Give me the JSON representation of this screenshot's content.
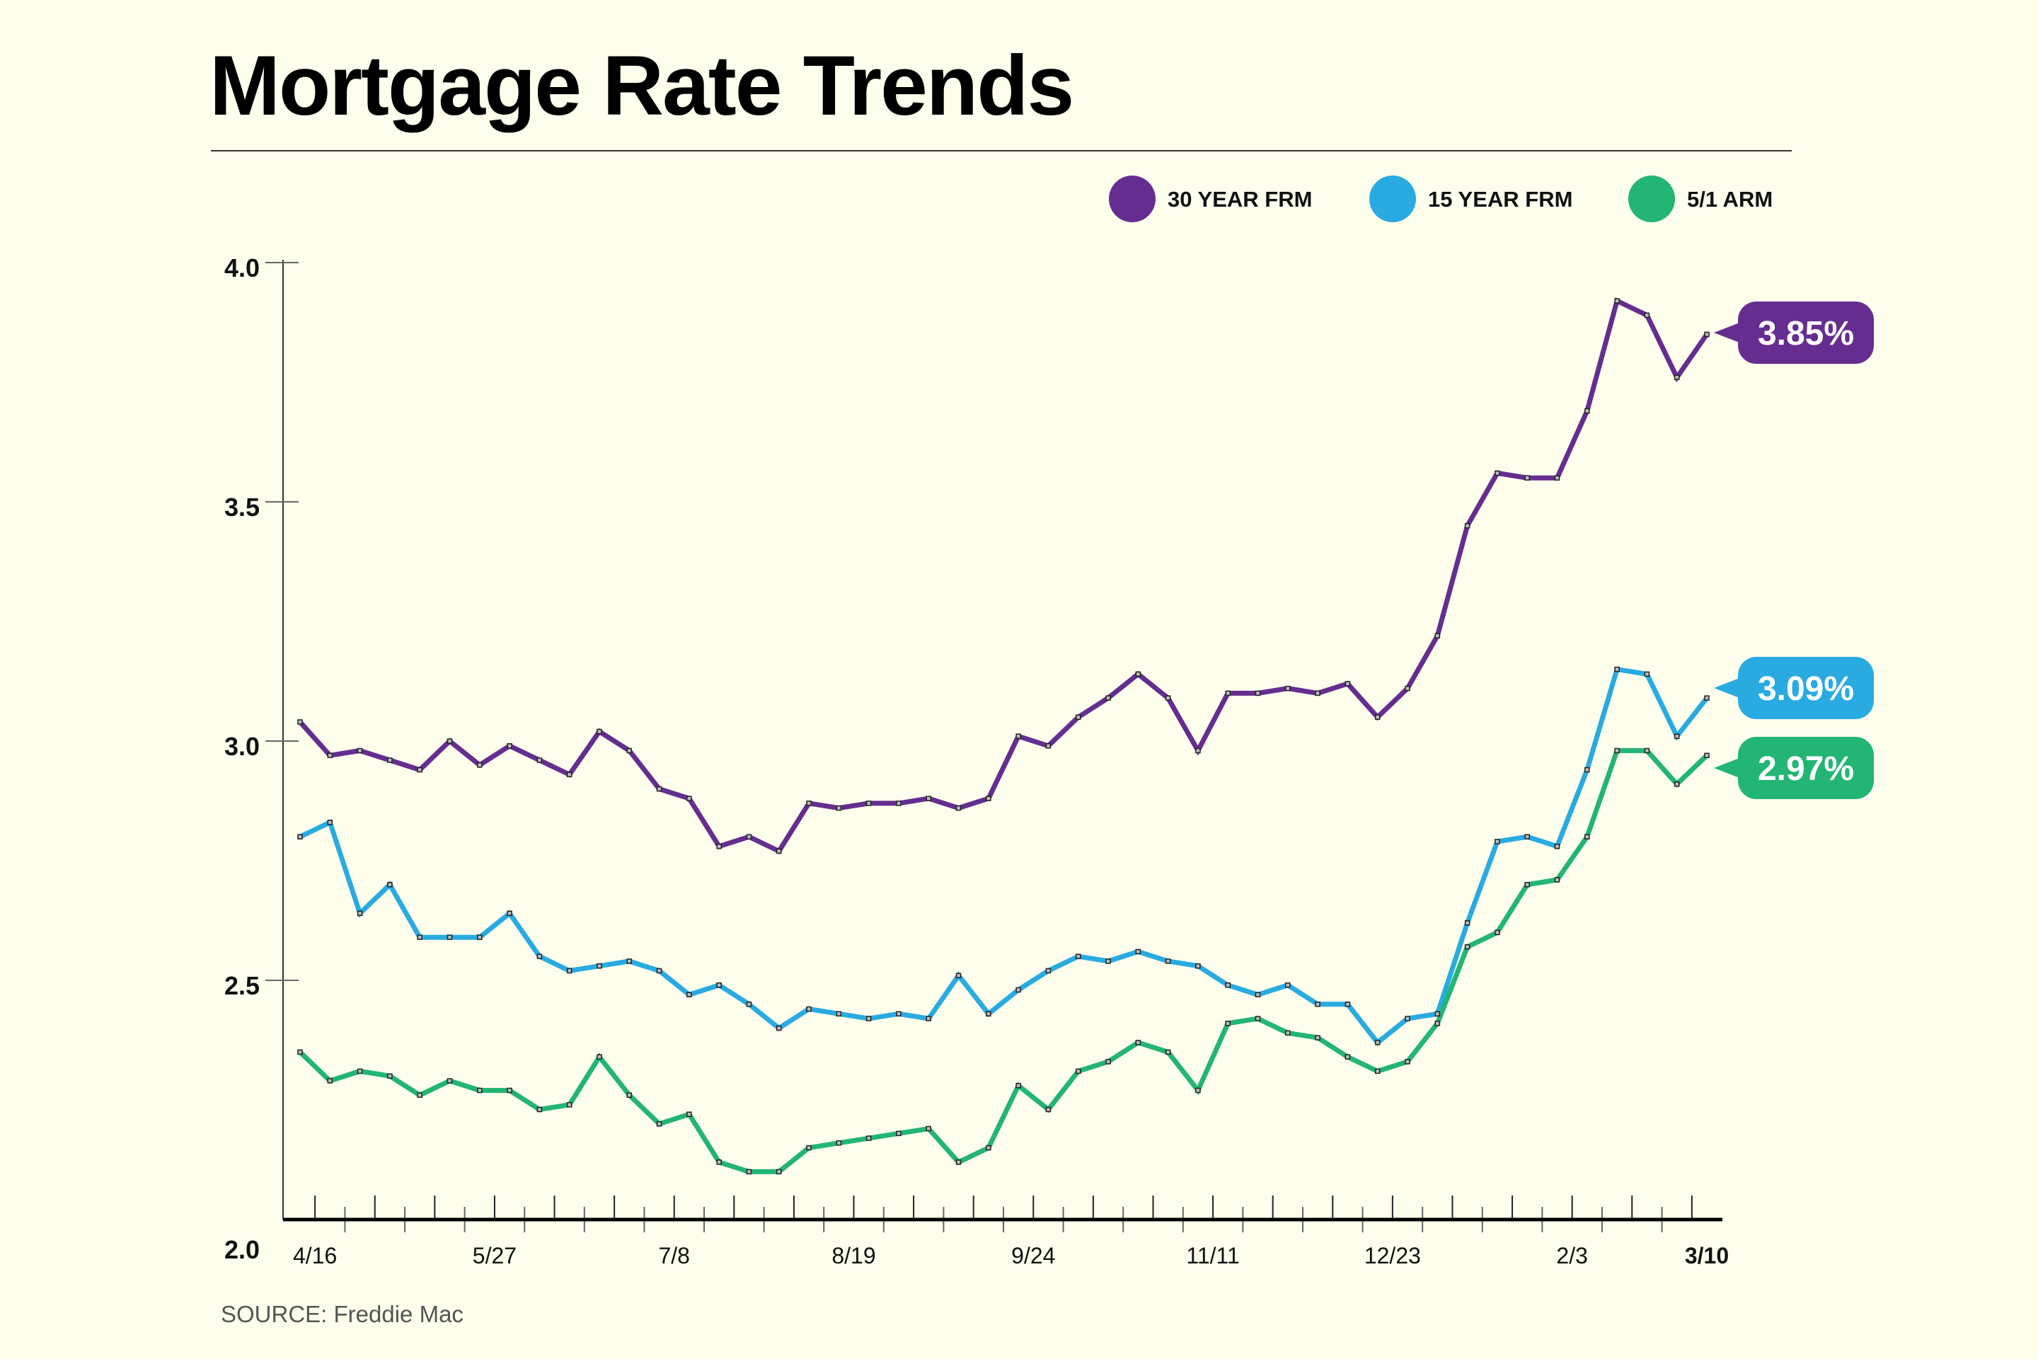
{
  "title": "Mortgage Rate Trends",
  "source": "SOURCE: Freddie Mac",
  "chart_data": {
    "type": "line",
    "title": "Mortgage Rate Trends",
    "ylim": [
      2.0,
      4.0
    ],
    "y_ticks": [
      "2.0",
      "2.5",
      "3.0",
      "3.5",
      "4.0"
    ],
    "x_tick_labels": [
      {
        "label": "4/16",
        "week": 0.5
      },
      {
        "label": "5/27",
        "week": 6.5
      },
      {
        "label": "7/8",
        "week": 12.5
      },
      {
        "label": "8/19",
        "week": 18.5
      },
      {
        "label": "9/24",
        "week": 24.5
      },
      {
        "label": "11/11",
        "week": 30.5
      },
      {
        "label": "12/23",
        "week": 36.5
      },
      {
        "label": "2/3",
        "week": 42.5
      },
      {
        "label": "3/10",
        "week": 47
      }
    ],
    "legend_position": "top-right",
    "grid": false,
    "series": [
      {
        "name": "30 YEAR FRM",
        "color": "#662D91",
        "last_label": "3.85%",
        "values": [
          3.04,
          2.97,
          2.98,
          2.96,
          2.94,
          3.0,
          2.95,
          2.99,
          2.96,
          2.93,
          3.02,
          2.98,
          2.9,
          2.88,
          2.78,
          2.8,
          2.77,
          2.87,
          2.86,
          2.87,
          2.87,
          2.88,
          2.86,
          2.88,
          3.01,
          2.99,
          3.05,
          3.09,
          3.14,
          3.09,
          2.98,
          3.1,
          3.1,
          3.11,
          3.1,
          3.12,
          3.05,
          3.11,
          3.22,
          3.45,
          3.56,
          3.55,
          3.55,
          3.69,
          3.92,
          3.89,
          3.76,
          3.85
        ]
      },
      {
        "name": "15 YEAR FRM",
        "color": "#29ABE2",
        "last_label": "3.09%",
        "values": [
          2.8,
          2.83,
          2.64,
          2.7,
          2.59,
          2.59,
          2.59,
          2.64,
          2.55,
          2.52,
          2.53,
          2.54,
          2.52,
          2.47,
          2.49,
          2.45,
          2.4,
          2.44,
          2.43,
          2.42,
          2.43,
          2.42,
          2.51,
          2.43,
          2.48,
          2.52,
          2.55,
          2.54,
          2.56,
          2.54,
          2.53,
          2.49,
          2.47,
          2.49,
          2.45,
          2.45,
          2.37,
          2.42,
          2.43,
          2.62,
          2.79,
          2.8,
          2.78,
          2.94,
          3.15,
          3.14,
          3.01,
          3.09
        ]
      },
      {
        "name": "5/1 ARM",
        "color": "#22B573",
        "last_label": "2.97%",
        "values": [
          2.35,
          2.29,
          2.31,
          2.3,
          2.26,
          2.29,
          2.27,
          2.27,
          2.23,
          2.24,
          2.34,
          2.26,
          2.2,
          2.22,
          2.12,
          2.1,
          2.1,
          2.15,
          2.16,
          2.17,
          2.18,
          2.19,
          2.12,
          2.15,
          2.28,
          2.23,
          2.31,
          2.33,
          2.37,
          2.35,
          2.27,
          2.41,
          2.42,
          2.39,
          2.38,
          2.34,
          2.31,
          2.33,
          2.41,
          2.57,
          2.6,
          2.7,
          2.71,
          2.8,
          2.98,
          2.98,
          2.91,
          2.97
        ]
      }
    ]
  }
}
